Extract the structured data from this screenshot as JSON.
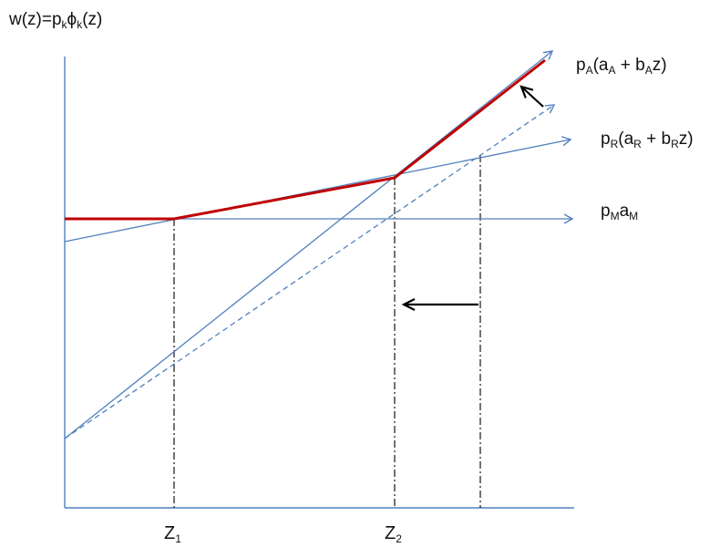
{
  "y_axis_label": {
    "w": "w(z)=p",
    "k1": "k",
    "phi": "ϕ",
    "k2": "k",
    "z": "(z)"
  },
  "labels": {
    "pA": {
      "p": "p",
      "sub1": "A",
      "open": "(a",
      "sub2": "A",
      "plus": " + b",
      "sub3": "A",
      "close": "z)"
    },
    "pR": {
      "p": "p",
      "sub1": "R",
      "open": "(a",
      "sub2": "R",
      "plus": " + b",
      "sub3": "R",
      "close": "z)"
    },
    "pM": {
      "p": "p",
      "sub1": "M",
      "a": "a",
      "sub2": "M"
    }
  },
  "x_ticks": {
    "z1": {
      "main": "Z",
      "sub": "1"
    },
    "z2": {
      "main": "Z",
      "sub": "2"
    }
  },
  "colors": {
    "axis": "#4f81bd",
    "line": "#4f81bd",
    "envelope": "#c00000",
    "arrow": "#000000",
    "guide": "#000000"
  }
}
